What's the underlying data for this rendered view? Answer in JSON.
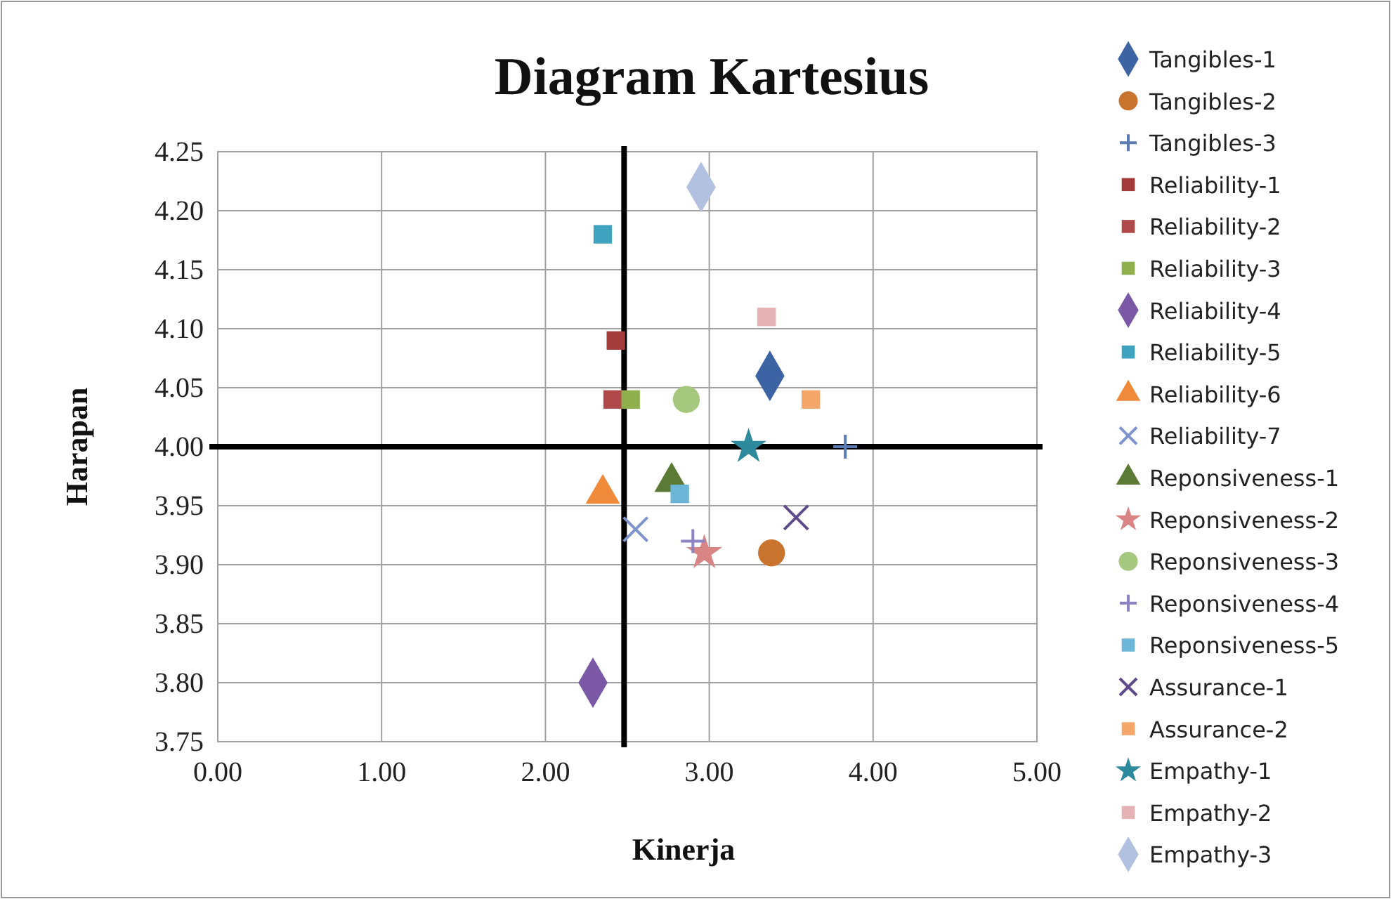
{
  "chart_data": {
    "type": "scatter",
    "title": "Diagram Kartesius",
    "xlabel": "Kinerja",
    "ylabel": "Harapan",
    "xlim": [
      0,
      5
    ],
    "xticks": [
      {
        "value": 0,
        "label": "0.00"
      },
      {
        "value": 1,
        "label": "1.00"
      },
      {
        "value": 2,
        "label": "2.00"
      },
      {
        "value": 3,
        "label": "3.00"
      },
      {
        "value": 4,
        "label": "4.00"
      },
      {
        "value": 5,
        "label": "5.00"
      }
    ],
    "ylim": [
      3.75,
      4.25
    ],
    "yticks": [
      {
        "value": 3.75,
        "label": "3.75"
      },
      {
        "value": 3.8,
        "label": "3.80"
      },
      {
        "value": 3.85,
        "label": "3.85"
      },
      {
        "value": 3.9,
        "label": "3.90"
      },
      {
        "value": 3.95,
        "label": "3.95"
      },
      {
        "value": 4,
        "label": "4.00"
      },
      {
        "value": 4.05,
        "label": "4.05"
      },
      {
        "value": 4.1,
        "label": "4.10"
      },
      {
        "value": 4.15,
        "label": "4.15"
      },
      {
        "value": 4.2,
        "label": "4.20"
      },
      {
        "value": 4.25,
        "label": "4.25"
      }
    ],
    "grid": true,
    "legend": "right",
    "ref_lines": [
      {
        "axis": "x",
        "value": 2.48,
        "color": "#000000"
      },
      {
        "axis": "y",
        "value": 4.0,
        "color": "#000000"
      }
    ],
    "series": [
      {
        "name": "Tangibles-1",
        "color": "#3c63a3",
        "marker": "diamond",
        "x": [
          3.37
        ],
        "values": [
          4.06
        ]
      },
      {
        "name": "Tangibles-2",
        "color": "#c8742f",
        "marker": "circle",
        "x": [
          3.38
        ],
        "values": [
          3.91
        ]
      },
      {
        "name": "Tangibles-3",
        "color": "#5b7bb5",
        "marker": "cross",
        "x": [
          3.83
        ],
        "values": [
          4.0
        ]
      },
      {
        "name": "Reliability-1",
        "color": "#a33b3b",
        "marker": "square",
        "x": [
          2.43
        ],
        "values": [
          4.09
        ]
      },
      {
        "name": "Reliability-2",
        "color": "#b04a4a",
        "marker": "square",
        "x": [
          2.41
        ],
        "values": [
          4.04
        ]
      },
      {
        "name": "Reliability-3",
        "color": "#8fb04c",
        "marker": "square",
        "x": [
          2.52
        ],
        "values": [
          4.04
        ]
      },
      {
        "name": "Reliability-4",
        "color": "#7b58a5",
        "marker": "diamond",
        "x": [
          2.29
        ],
        "values": [
          3.8
        ]
      },
      {
        "name": "Reliability-5",
        "color": "#3fa3c0",
        "marker": "square",
        "x": [
          2.35
        ],
        "values": [
          4.18
        ]
      },
      {
        "name": "Reliability-6",
        "color": "#ee8a3a",
        "marker": "triangle",
        "x": [
          2.35
        ],
        "values": [
          3.96
        ]
      },
      {
        "name": "Reliability-7",
        "color": "#7f93cc",
        "marker": "x",
        "x": [
          2.55
        ],
        "values": [
          3.93
        ]
      },
      {
        "name": "Reponsiveness-1",
        "color": "#5b7a35",
        "marker": "triangle",
        "x": [
          2.77
        ],
        "values": [
          3.97
        ]
      },
      {
        "name": "Reponsiveness-2",
        "color": "#d98585",
        "marker": "star",
        "x": [
          2.97
        ],
        "values": [
          3.91
        ]
      },
      {
        "name": "Reponsiveness-3",
        "color": "#a5c77e",
        "marker": "circle",
        "x": [
          2.86
        ],
        "values": [
          4.04
        ]
      },
      {
        "name": "Reponsiveness-4",
        "color": "#8d84c4",
        "marker": "cross",
        "x": [
          2.9
        ],
        "values": [
          3.92
        ]
      },
      {
        "name": "Reponsiveness-5",
        "color": "#6bb6d6",
        "marker": "square",
        "x": [
          2.82
        ],
        "values": [
          3.96
        ]
      },
      {
        "name": "Assurance-1",
        "color": "#5e4b8b",
        "marker": "x",
        "x": [
          3.53
        ],
        "values": [
          3.94
        ]
      },
      {
        "name": "Assurance-2",
        "color": "#f4a66b",
        "marker": "square",
        "x": [
          3.62
        ],
        "values": [
          4.04
        ]
      },
      {
        "name": "Empathy-1",
        "color": "#2d8a9c",
        "marker": "star",
        "x": [
          3.24
        ],
        "values": [
          4.0
        ]
      },
      {
        "name": "Empathy-2",
        "color": "#e5b3b5",
        "marker": "square",
        "x": [
          3.35
        ],
        "values": [
          4.11
        ]
      },
      {
        "name": "Empathy-3",
        "color": "#b3c1e0",
        "marker": "diamond",
        "x": [
          2.95
        ],
        "values": [
          4.22
        ]
      }
    ]
  }
}
